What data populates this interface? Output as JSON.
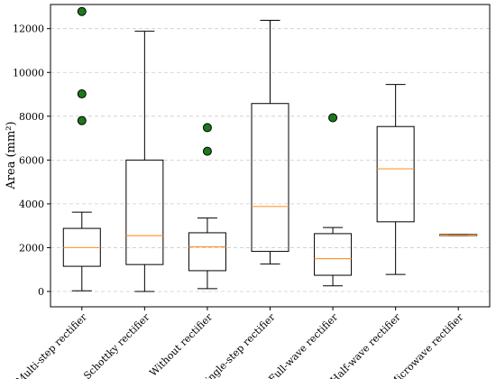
{
  "chart_data": {
    "type": "boxplot",
    "title": "",
    "xlabel": "",
    "ylabel": "Area (mm²)",
    "ylim": [
      -700,
      13100
    ],
    "yticks": [
      0,
      2000,
      4000,
      6000,
      8000,
      10000,
      12000
    ],
    "grid": "horizontal dashed",
    "colors": {
      "box": "#000000",
      "median": "#ff9933",
      "flier_fill": "#1a7a1a",
      "grid": "#cccccc"
    },
    "categories": [
      "Multi-step rectifier",
      "Schottky rectifier",
      "Without rectifier",
      "Single-step rectifier",
      "Full-wave rectifier",
      "Half-wave rectifier",
      "Microwave rectifier"
    ],
    "boxes": [
      {
        "whislo": 30,
        "q1": 1150,
        "med": 2000,
        "q3": 2880,
        "whishi": 3620,
        "fliers": [
          7800,
          9020,
          12780
        ]
      },
      {
        "whislo": 0,
        "q1": 1230,
        "med": 2550,
        "q3": 6000,
        "whishi": 11880,
        "fliers": []
      },
      {
        "whislo": 130,
        "q1": 950,
        "med": 2040,
        "q3": 2680,
        "whishi": 3350,
        "fliers": [
          6400,
          7480
        ]
      },
      {
        "whislo": 1250,
        "q1": 1830,
        "med": 3880,
        "q3": 8580,
        "whishi": 12380,
        "fliers": []
      },
      {
        "whislo": 260,
        "q1": 740,
        "med": 1500,
        "q3": 2640,
        "whishi": 2920,
        "fliers": [
          7930
        ]
      },
      {
        "whislo": 780,
        "q1": 3180,
        "med": 5600,
        "q3": 7530,
        "whishi": 9450,
        "fliers": []
      },
      {
        "whislo": 2550,
        "q1": 2550,
        "med": 2570,
        "q3": 2600,
        "whishi": 2600,
        "fliers": []
      }
    ]
  }
}
